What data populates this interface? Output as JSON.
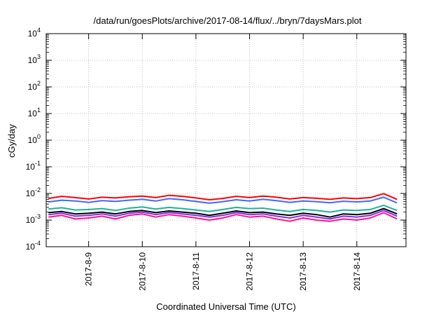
{
  "chart_data": {
    "type": "line",
    "title": "/data/run/goesPlots/archive/2017-08-14/flux/../bryn/7daysMars.plot",
    "xlabel": "Coordinated Universal Time (UTC)",
    "ylabel": "cGy/day",
    "yscale": "log",
    "ylim": [
      0.0001,
      10000
    ],
    "xlim": [
      "2017-08-08T05:00",
      "2017-08-14T22:00"
    ],
    "grid": true,
    "legend": "none",
    "y_tick_labels": [
      {
        "base": "10",
        "exp": "-4"
      },
      {
        "base": "10",
        "exp": "-3"
      },
      {
        "base": "10",
        "exp": "-2"
      },
      {
        "base": "10",
        "exp": "-1"
      },
      {
        "base": "10",
        "exp": "0"
      },
      {
        "base": "10",
        "exp": "1"
      },
      {
        "base": "10",
        "exp": "2"
      },
      {
        "base": "10",
        "exp": "3"
      },
      {
        "base": "10",
        "exp": "4"
      }
    ],
    "x_tick_labels": [
      {
        "date": "2017-08-09",
        "label": "2017-8-9"
      },
      {
        "date": "2017-08-10",
        "label": "2017-8-10"
      },
      {
        "date": "2017-08-11",
        "label": "2017-8-11"
      },
      {
        "date": "2017-08-12",
        "label": "2017-8-12"
      },
      {
        "date": "2017-08-13",
        "label": "2017-8-13"
      },
      {
        "date": "2017-08-14",
        "label": "2017-8-14"
      }
    ],
    "x": [
      "2017-08-08T06:00",
      "2017-08-08T12:00",
      "2017-08-08T18:00",
      "2017-08-09T00:00",
      "2017-08-09T06:00",
      "2017-08-09T12:00",
      "2017-08-09T18:00",
      "2017-08-10T00:00",
      "2017-08-10T06:00",
      "2017-08-10T12:00",
      "2017-08-10T18:00",
      "2017-08-11T00:00",
      "2017-08-11T06:00",
      "2017-08-11T12:00",
      "2017-08-11T18:00",
      "2017-08-12T00:00",
      "2017-08-12T06:00",
      "2017-08-12T12:00",
      "2017-08-12T18:00",
      "2017-08-13T00:00",
      "2017-08-13T06:00",
      "2017-08-13T12:00",
      "2017-08-13T18:00",
      "2017-08-14T00:00",
      "2017-08-14T06:00",
      "2017-08-14T12:00",
      "2017-08-14T18:00"
    ],
    "series": [
      {
        "color": "#ff0000",
        "values": [
          0.0065,
          0.0078,
          0.007,
          0.0062,
          0.0072,
          0.0068,
          0.0075,
          0.008,
          0.007,
          0.0085,
          0.0078,
          0.0068,
          0.0058,
          0.0065,
          0.0078,
          0.007,
          0.008,
          0.0072,
          0.0062,
          0.007,
          0.0066,
          0.006,
          0.0068,
          0.0064,
          0.007,
          0.0098,
          0.006
        ]
      },
      {
        "color": "#3a6cff",
        "values": [
          0.0048,
          0.0056,
          0.0052,
          0.0046,
          0.0054,
          0.005,
          0.0056,
          0.006,
          0.0052,
          0.0064,
          0.0058,
          0.005,
          0.0043,
          0.0049,
          0.0058,
          0.0052,
          0.006,
          0.0054,
          0.0046,
          0.0052,
          0.0049,
          0.0045,
          0.0051,
          0.0048,
          0.0052,
          0.0072,
          0.0044
        ]
      },
      {
        "color": "#1db39a",
        "values": [
          0.0026,
          0.0029,
          0.0024,
          0.0025,
          0.0027,
          0.0023,
          0.0028,
          0.0031,
          0.0026,
          0.003,
          0.0027,
          0.0024,
          0.0021,
          0.0025,
          0.003,
          0.0027,
          0.0028,
          0.0024,
          0.0021,
          0.0025,
          0.0023,
          0.002,
          0.0024,
          0.0023,
          0.0025,
          0.0036,
          0.0023
        ]
      },
      {
        "color": "#000000",
        "values": [
          0.0019,
          0.0021,
          0.0017,
          0.0018,
          0.002,
          0.0017,
          0.0021,
          0.0023,
          0.0019,
          0.0022,
          0.002,
          0.0018,
          0.0015,
          0.0018,
          0.0022,
          0.0019,
          0.002,
          0.0017,
          0.0015,
          0.0018,
          0.0016,
          0.0013,
          0.0017,
          0.0016,
          0.0018,
          0.0027,
          0.0017
        ]
      },
      {
        "color": "#8a2be2",
        "values": [
          0.0016,
          0.0018,
          0.0014,
          0.0015,
          0.0017,
          0.0014,
          0.0018,
          0.002,
          0.0016,
          0.0019,
          0.0017,
          0.0015,
          0.0013,
          0.0015,
          0.0019,
          0.0016,
          0.0017,
          0.0014,
          0.0012,
          0.0015,
          0.0013,
          0.0011,
          0.0014,
          0.0013,
          0.0015,
          0.0023,
          0.0014
        ]
      },
      {
        "color": "#ff1493",
        "values": [
          0.0013,
          0.0015,
          0.0011,
          0.0012,
          0.0014,
          0.0011,
          0.0015,
          0.0017,
          0.0013,
          0.0016,
          0.0014,
          0.0012,
          0.001,
          0.0012,
          0.0016,
          0.0013,
          0.0014,
          0.0011,
          0.0009,
          0.0012,
          0.001,
          0.0009,
          0.0011,
          0.001,
          0.0012,
          0.0019,
          0.0011
        ]
      }
    ]
  }
}
